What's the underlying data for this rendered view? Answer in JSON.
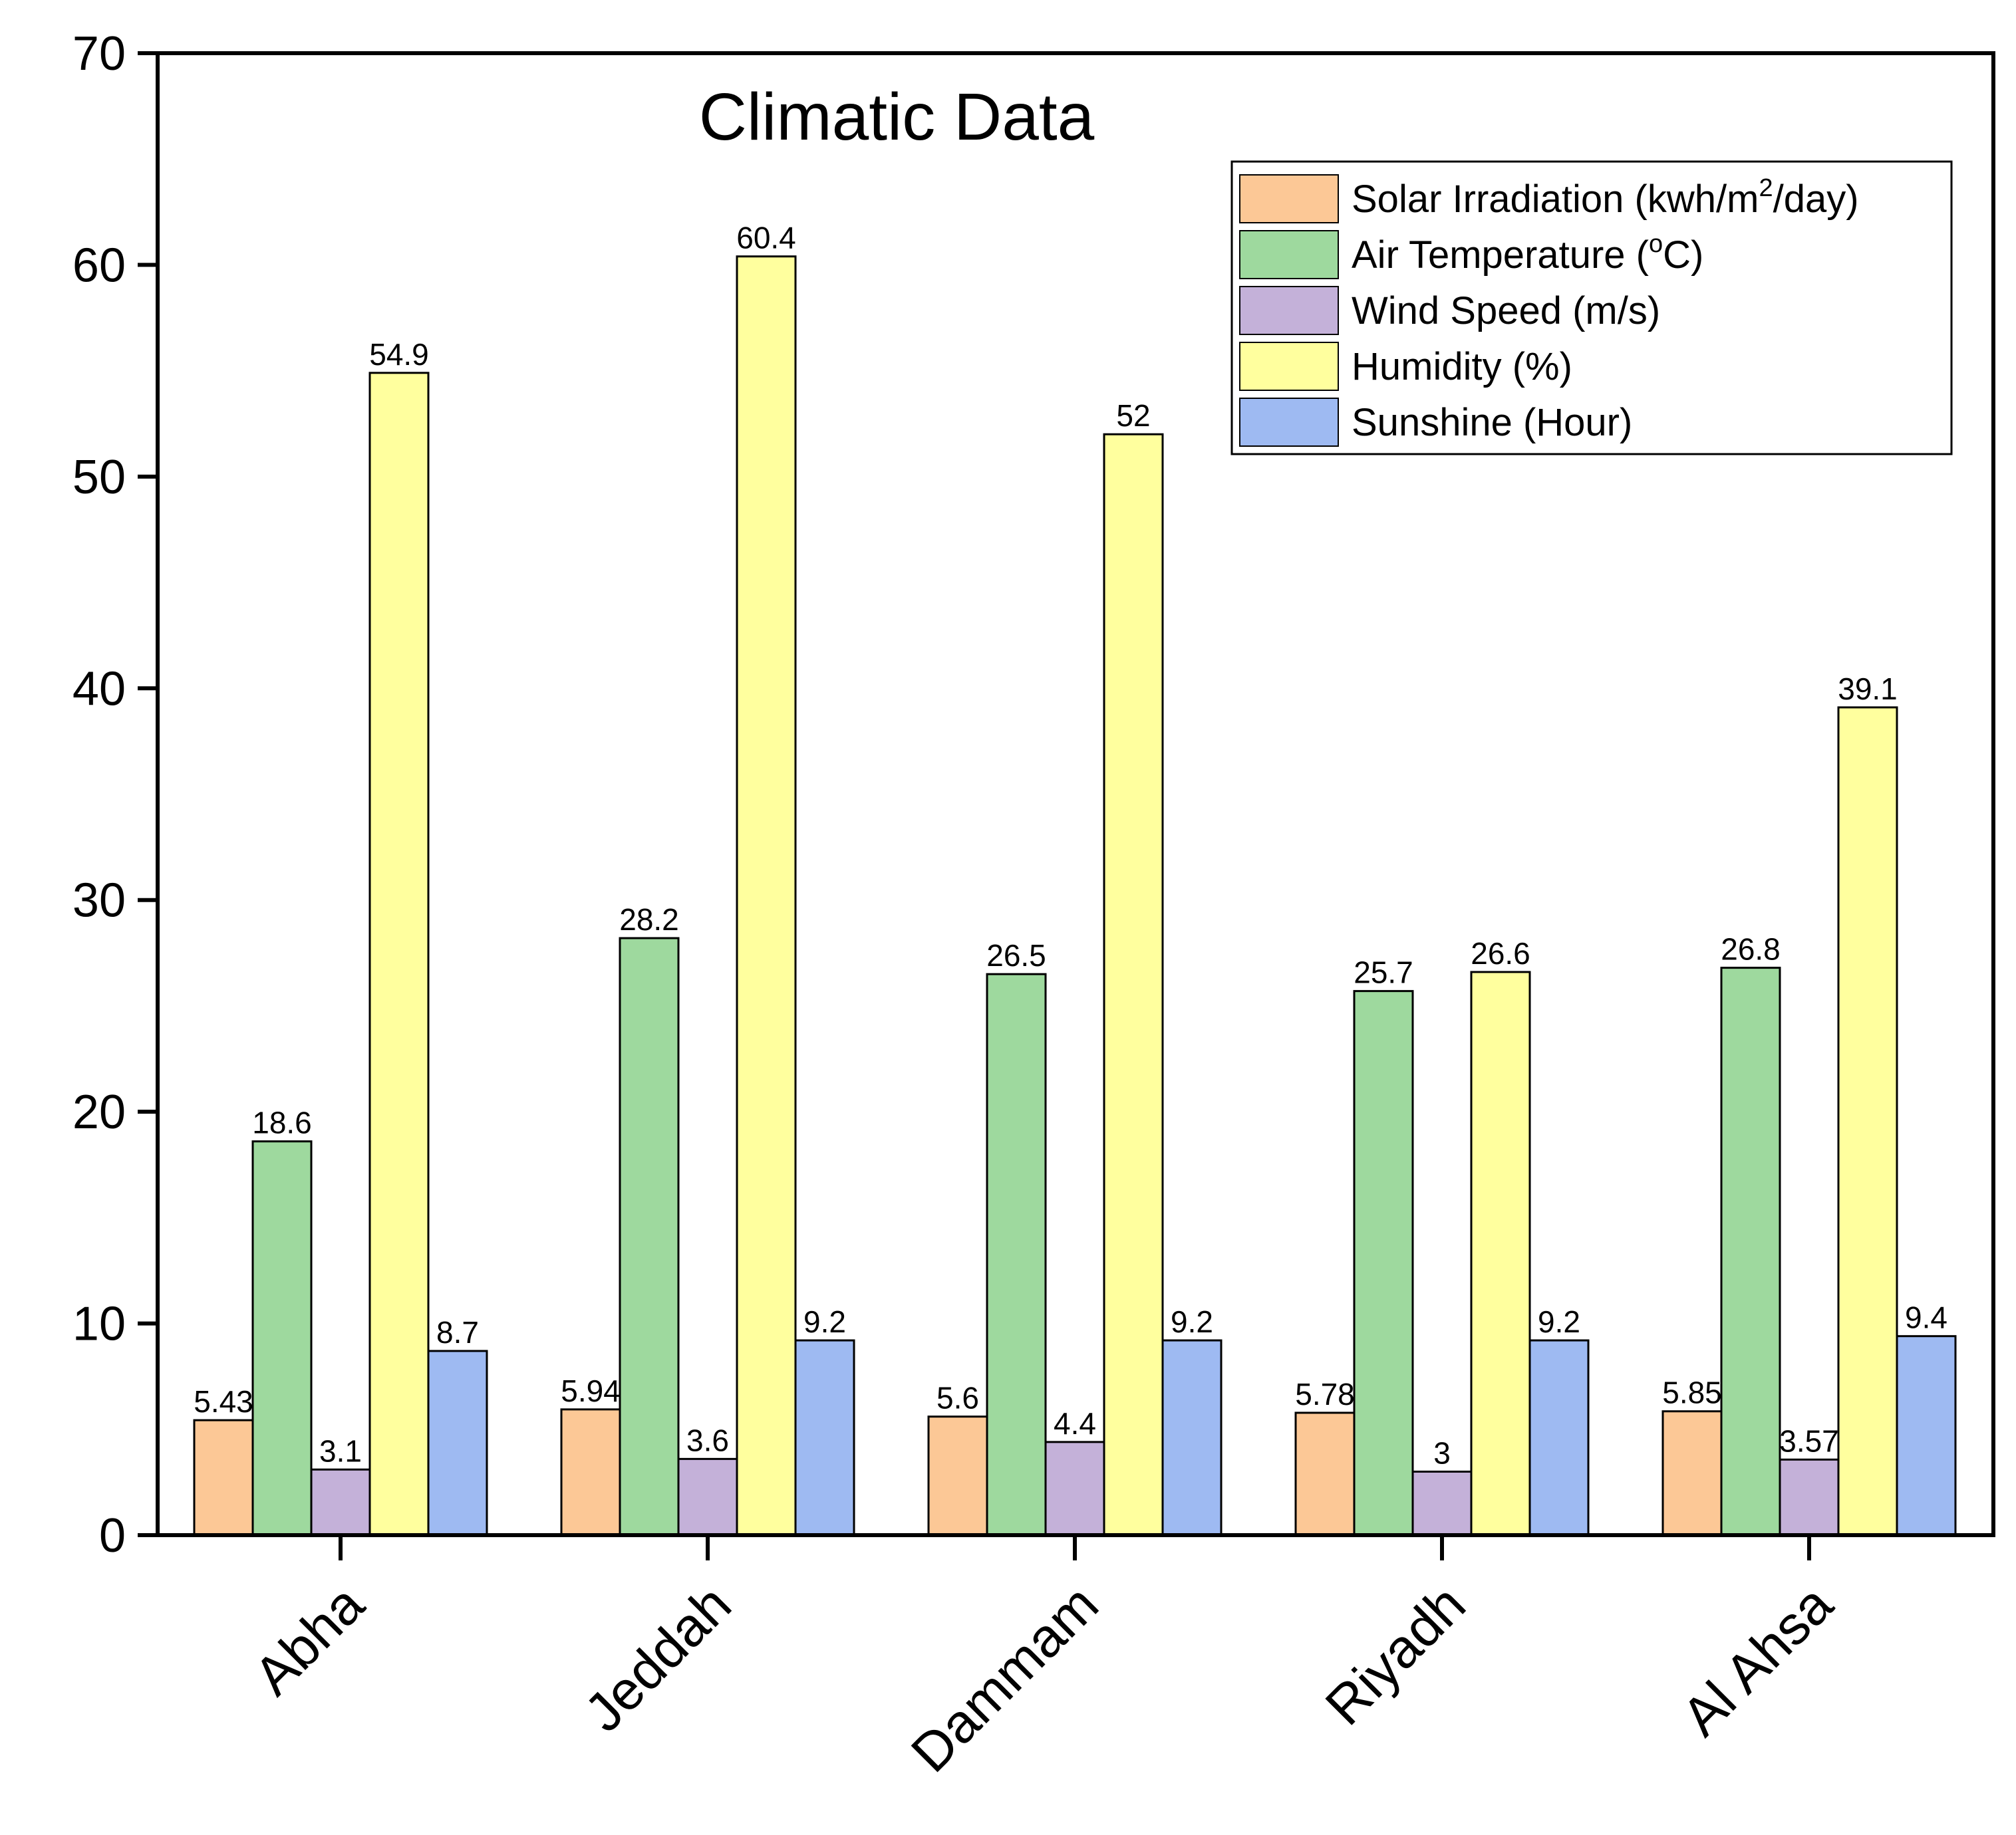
{
  "chart_data": {
    "type": "bar",
    "title": "Climatic Data",
    "xlabel": "",
    "ylabel": "",
    "ylim": [
      0,
      70
    ],
    "yticks": [
      0,
      10,
      20,
      30,
      40,
      50,
      60,
      70
    ],
    "grid": false,
    "legend_position": "top-right",
    "categories": [
      "Abha",
      "Jeddah",
      "Dammam",
      "Riyadh",
      "Al Ahsa"
    ],
    "series": [
      {
        "name": "Solar Irradiation (kwh/m2/day)",
        "legend_parts": [
          "Solar Irradiation (kwh/m",
          "2",
          "/day)"
        ],
        "color": "#FCC896",
        "values": [
          5.43,
          5.94,
          5.6,
          5.78,
          5.85
        ],
        "labels": [
          "5.43",
          "5.94",
          "5.6",
          "5.78",
          "5.85"
        ]
      },
      {
        "name": "Air Temperature (oC)",
        "legend_parts": [
          "Air Temperature (",
          "o",
          "C)"
        ],
        "color": "#9ED99E",
        "values": [
          18.6,
          28.2,
          26.5,
          25.7,
          26.8
        ],
        "labels": [
          "18.6",
          "28.2",
          "26.5",
          "25.7",
          "26.8"
        ]
      },
      {
        "name": "Wind Speed (m/s)",
        "legend_parts": [
          "Wind Speed (m/s)"
        ],
        "color": "#C4B1D9",
        "values": [
          3.1,
          3.6,
          4.4,
          3,
          3.57
        ],
        "labels": [
          "3.1",
          "3.6",
          "4.4",
          "3",
          "3.57"
        ]
      },
      {
        "name": "Humidity (%)",
        "legend_parts": [
          "Humidity (%)"
        ],
        "color": "#FFFF9E",
        "values": [
          54.9,
          60.4,
          52,
          26.6,
          39.1
        ],
        "labels": [
          "54.9",
          "60.4",
          "52",
          "26.6",
          "39.1"
        ]
      },
      {
        "name": "Sunshine (Hour)",
        "legend_parts": [
          "Sunshine (Hour)"
        ],
        "color": "#9EBAF2",
        "values": [
          8.7,
          9.2,
          9.2,
          9.2,
          9.4
        ],
        "labels": [
          "8.7",
          "9.2",
          "9.2",
          "9.2",
          "9.4"
        ]
      }
    ]
  }
}
